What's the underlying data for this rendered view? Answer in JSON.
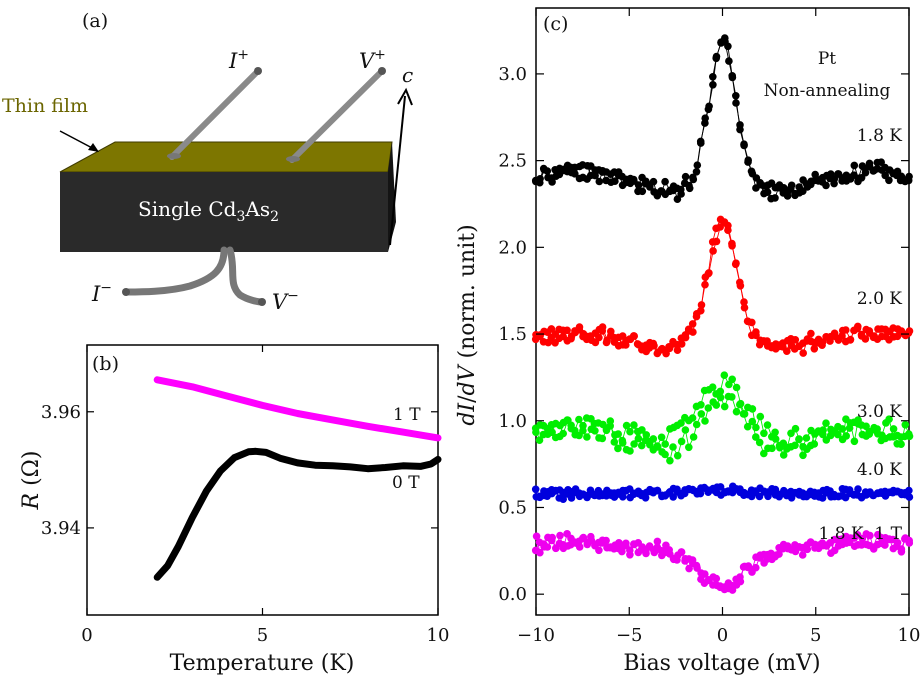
{
  "panel_a": {
    "label": "(a)",
    "thin_film_label": "Thin film",
    "block_label_prefix": "Single Cd",
    "block_label_sub1": "3",
    "block_label_mid": "As",
    "block_label_sub2": "2",
    "lead_i_plus": "I",
    "lead_i_plus_sup": "+",
    "lead_v_plus": "V",
    "lead_v_plus_sup": "+",
    "lead_i_minus": "I",
    "lead_i_minus_sup": "−",
    "lead_v_minus": "V",
    "lead_v_minus_sup": "−",
    "axis_c": "c",
    "colors": {
      "film": "#7a7400",
      "film_label": "#6b6500",
      "block": "#2b2b2b"
    }
  },
  "chart_data": [
    {
      "id": "panel_b",
      "label": "(b)",
      "type": "line",
      "xlabel": "Temperature (K)",
      "ylabel_italic": "R",
      "ylabel_rest": " (Ω)",
      "xlim": [
        0,
        10
      ],
      "ylim": [
        3.925,
        3.9715
      ],
      "xticks": [
        0,
        5,
        10
      ],
      "yticks": [
        3.94,
        3.96
      ],
      "ytick_labels": [
        "3.94",
        "3.96"
      ],
      "grid": false,
      "series": [
        {
          "name": "1 T",
          "color": "#ff00ff",
          "x": [
            2.0,
            3.0,
            4.0,
            5.0,
            6.0,
            7.0,
            8.0,
            9.0,
            10.0
          ],
          "y": [
            3.9655,
            3.9643,
            3.9627,
            3.9611,
            3.9597,
            3.9586,
            3.9575,
            3.9565,
            3.9555
          ]
        },
        {
          "name": "0 T",
          "color": "#000000",
          "x": [
            2.0,
            2.3,
            2.6,
            3.0,
            3.4,
            3.8,
            4.2,
            4.6,
            4.8,
            5.1,
            5.5,
            6.0,
            6.5,
            7.0,
            7.5,
            8.0,
            8.5,
            9.0,
            9.5,
            9.8,
            10.0
          ],
          "y": [
            3.9315,
            3.9335,
            3.9368,
            3.9418,
            3.9463,
            3.9498,
            3.9521,
            3.9531,
            3.9532,
            3.953,
            3.952,
            3.9512,
            3.9508,
            3.9507,
            3.9505,
            3.9502,
            3.9504,
            3.9507,
            3.9506,
            3.951,
            3.9518
          ]
        }
      ]
    },
    {
      "id": "panel_c",
      "label": "(c)",
      "type": "scatter",
      "xlabel": "Bias voltage (mV)",
      "ylabel": "dI/dV (norm. unit)",
      "xlim": [
        -10,
        10
      ],
      "ylim": [
        -0.12,
        3.38
      ],
      "xticks": [
        -10,
        -5,
        0,
        5,
        10
      ],
      "xtick_labels": [
        "−10",
        "−5",
        "0",
        "5",
        "10"
      ],
      "yticks": [
        0.0,
        0.5,
        1.0,
        1.5,
        2.0,
        2.5,
        3.0
      ],
      "ytick_labels": [
        "0.0",
        "0.5",
        "1.0",
        "1.5",
        "2.0",
        "2.5",
        "3.0"
      ],
      "annotation_material": "Pt",
      "annotation_condition": "Non-annealing",
      "grid": false,
      "series": [
        {
          "name": "1.8 K",
          "color": "#000000",
          "baseline": 2.37,
          "peak": 0.82,
          "width": 0.95,
          "wing": 0.07,
          "dip": -0.05,
          "noise": 0.045,
          "seed": 11
        },
        {
          "name": "2.0 K",
          "color": "#ff0000",
          "baseline": 1.45,
          "peak": 0.69,
          "width": 1.05,
          "wing": 0.06,
          "dip": -0.03,
          "noise": 0.04,
          "seed": 23
        },
        {
          "name": "3.0 K",
          "color": "#00ee00",
          "baseline": 0.92,
          "peak": 0.3,
          "width": 1.6,
          "wing": 0.04,
          "dip": -0.04,
          "noise": 0.06,
          "seed": 37
        },
        {
          "name": "4.0 K",
          "color": "#0000dd",
          "baseline": 0.58,
          "peak": 0.02,
          "width": 2.0,
          "wing": 0.0,
          "dip": 0.0,
          "noise": 0.025,
          "seed": 41
        },
        {
          "name": "1.8 K  1 T",
          "color": "#ee00ee",
          "baseline": 0.26,
          "peak": -0.2,
          "width": 1.8,
          "wing": 0.05,
          "dip": 0.0,
          "noise": 0.04,
          "seed": 53
        }
      ]
    }
  ]
}
